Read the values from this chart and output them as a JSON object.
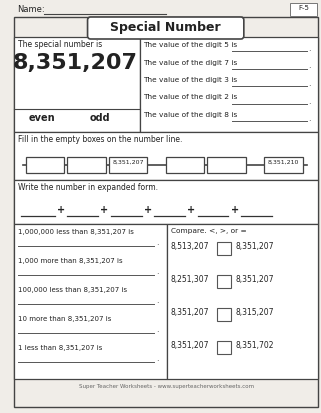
{
  "title": "Special Number",
  "page_label": "F-5",
  "name_label": "Name:",
  "special_number": "8,351,207",
  "special_number_label": "The special number is",
  "even_odd": [
    "even",
    "odd"
  ],
  "digit_questions": [
    "The value of the digit 5 is",
    "The value of the digit 7 is",
    "The value of the digit 3 is",
    "The value of the digit 2 is",
    "The value of the digit 8 is"
  ],
  "number_line_label": "Fill in the empty boxes on the number line.",
  "number_line_filled": [
    "8,351,207",
    "8,351,210"
  ],
  "expanded_form_label": "Write the number in expanded form.",
  "less_more_questions": [
    "1,000,000 less than 8,351,207 is",
    "1,000 more than 8,351,207 is",
    "100,000 less than 8,351,207 is",
    "10 more than 8,351,207 is",
    "1 less than 8,351,207 is"
  ],
  "compare_label": "Compare. <, >, or =",
  "compare_pairs": [
    [
      "8,513,207",
      "8,351,207"
    ],
    [
      "8,251,307",
      "8,351,207"
    ],
    [
      "8,351,207",
      "8,315,207"
    ],
    [
      "8,351,207",
      "8,351,702"
    ]
  ],
  "footer": "Super Teacher Worksheets - www.superteacherworksheets.com",
  "bg_color": "#f0ede8",
  "white": "#ffffff",
  "border_color": "#444444",
  "text_color": "#222222",
  "light_gray": "#aaaaaa"
}
